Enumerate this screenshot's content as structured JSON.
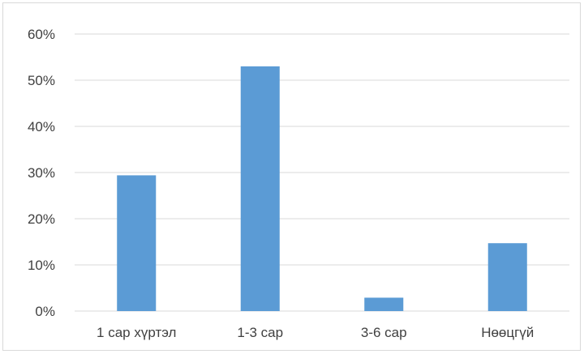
{
  "chart_data": {
    "type": "bar",
    "title": "",
    "xlabel": "",
    "ylabel": "",
    "categories": [
      "1 сар хүртэл",
      "1-3 сар",
      "3-6 сар",
      "Нөөцгүй"
    ],
    "values": [
      29.4,
      53.0,
      2.9,
      14.7
    ],
    "ylim": [
      0,
      60
    ],
    "yticks": [
      0,
      10,
      20,
      30,
      40,
      50,
      60
    ],
    "ytick_labels": [
      "0%",
      "10%",
      "20%",
      "30%",
      "40%",
      "50%",
      "60%"
    ],
    "grid": true,
    "legend": "none",
    "bar_color": "#5b9bd5"
  }
}
